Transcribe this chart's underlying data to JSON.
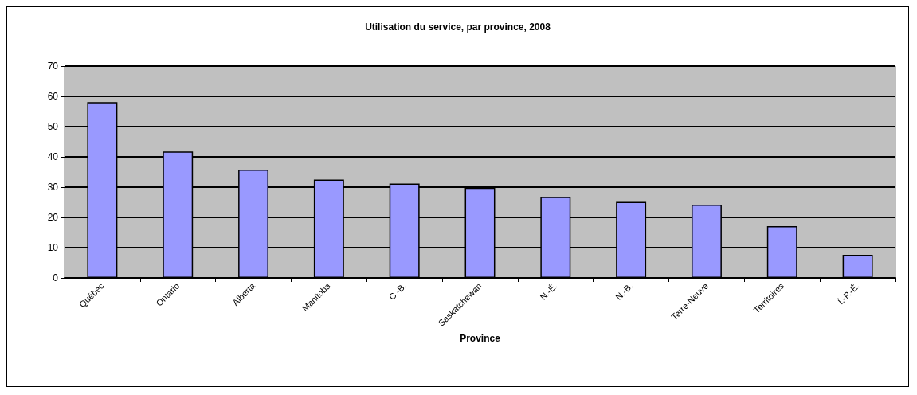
{
  "chart_data": {
    "type": "bar",
    "title": "Utilisation du service, par province, 2008",
    "xlabel": "Province",
    "categories": [
      "Québec",
      "Ontario",
      "Alberta",
      "Manitoba",
      "C.-B.",
      "Saskatchewan",
      "N.-É.",
      "N.-B.",
      "Terre-Neuve",
      "Territoires",
      "Î.-P.-É."
    ],
    "values": [
      58.1,
      41.8,
      35.8,
      32.5,
      31.2,
      29.8,
      26.8,
      25.1,
      24.2,
      17.1,
      7.6
    ],
    "color": "#9999ff",
    "ylim": [
      0,
      70
    ],
    "yticks": [
      0,
      10,
      20,
      30,
      40,
      50,
      60,
      70
    ],
    "grid": "y"
  }
}
